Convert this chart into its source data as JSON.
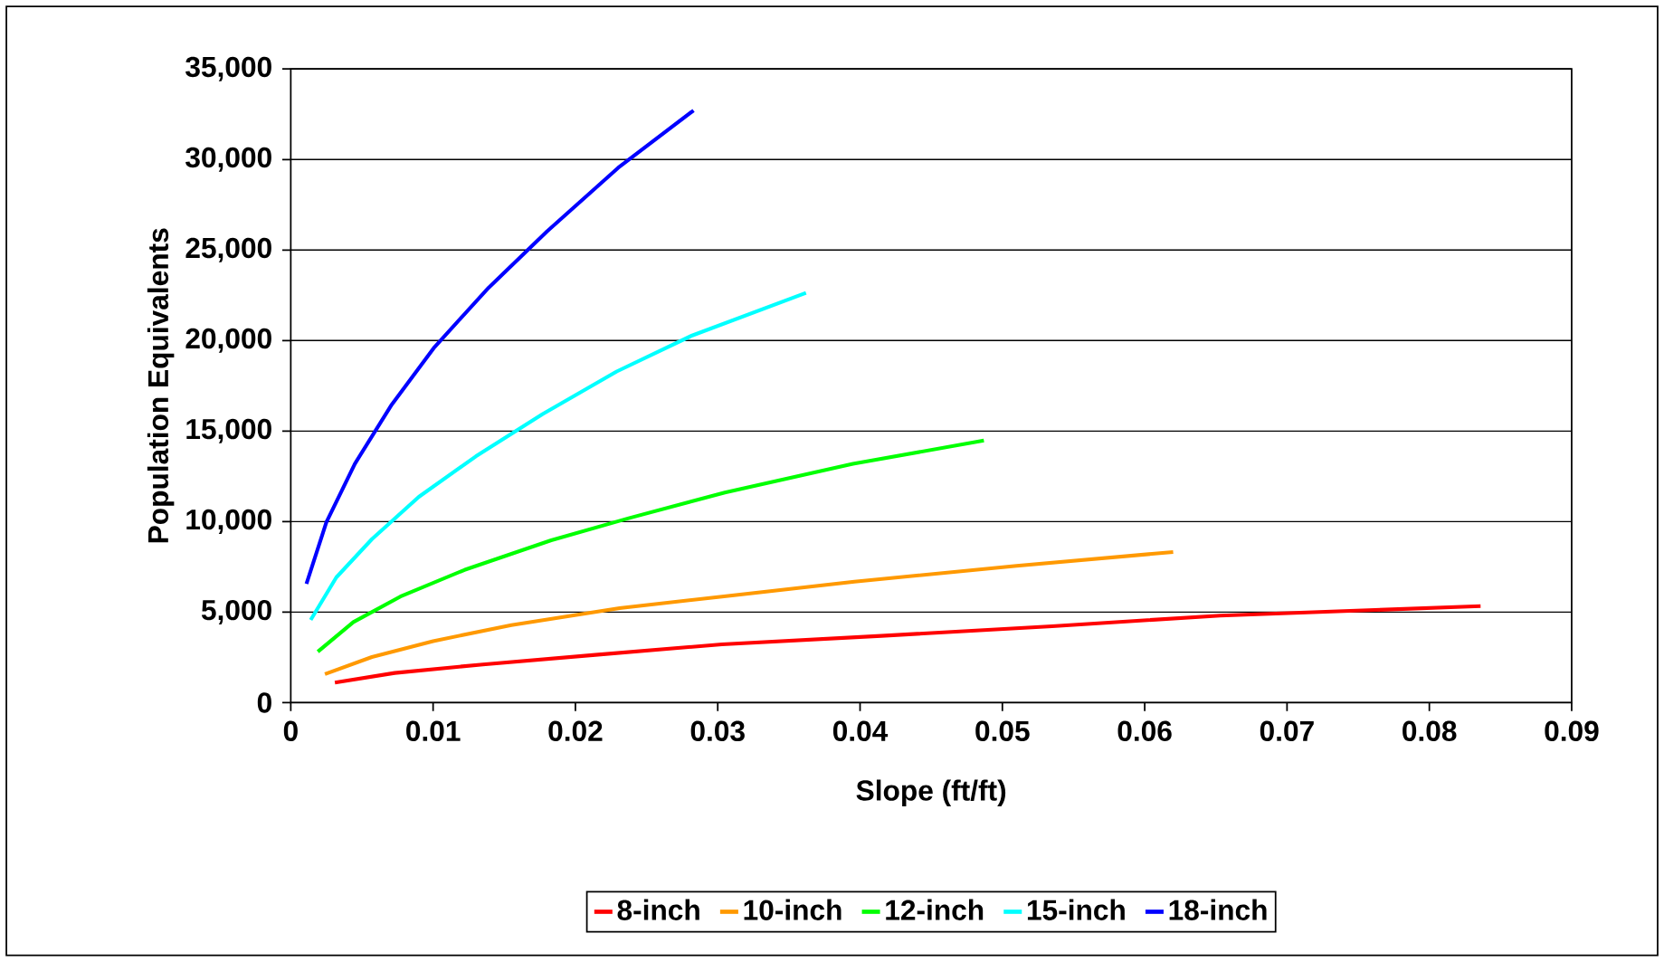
{
  "chart_data": {
    "type": "line",
    "xlabel": "Slope (ft/ft)",
    "ylabel": "Population Equivalents",
    "xlim": [
      0,
      0.09
    ],
    "ylim": [
      0,
      35000
    ],
    "xticks": [
      0,
      0.01,
      0.02,
      0.03,
      0.04,
      0.05,
      0.06,
      0.07,
      0.08,
      0.09
    ],
    "yticks": [
      {
        "value": 0,
        "label": "0"
      },
      {
        "value": 5000,
        "label": "5,000"
      },
      {
        "value": 10000,
        "label": "10,000"
      },
      {
        "value": 15000,
        "label": "15,000"
      },
      {
        "value": 20000,
        "label": "20,000"
      },
      {
        "value": 25000,
        "label": "25,000"
      },
      {
        "value": 30000,
        "label": "30,000"
      },
      {
        "value": 35000,
        "label": "35,000"
      }
    ],
    "grid": "y",
    "legend": "bottom",
    "marker": "none",
    "line_style": "solid",
    "series": [
      {
        "name": "8-inch",
        "color": "#ff0000",
        "x": [
          0.0031,
          0.0073,
          0.0135,
          0.0214,
          0.0303,
          0.0415,
          0.0535,
          0.0653,
          0.0836
        ],
        "values": [
          1110,
          1640,
          2110,
          2640,
          3220,
          3690,
          4220,
          4810,
          5330
        ]
      },
      {
        "name": "10-inch",
        "color": "#ff9900",
        "x": [
          0.0024,
          0.0057,
          0.01,
          0.0155,
          0.0231,
          0.0303,
          0.0396,
          0.051,
          0.062
        ],
        "values": [
          1580,
          2520,
          3400,
          4280,
          5220,
          5860,
          6680,
          7560,
          8320
        ]
      },
      {
        "name": "12-inch",
        "color": "#00ff00",
        "x": [
          0.0019,
          0.0044,
          0.0077,
          0.0122,
          0.0183,
          0.0238,
          0.0305,
          0.0395,
          0.0487
        ],
        "values": [
          2810,
          4450,
          5860,
          7330,
          8970,
          10200,
          11610,
          13190,
          14480
        ]
      },
      {
        "name": "15-inch",
        "color": "#00ffff",
        "x": [
          0.0014,
          0.0032,
          0.0057,
          0.009,
          0.013,
          0.0177,
          0.0229,
          0.0282,
          0.0362
        ],
        "values": [
          4570,
          6920,
          9030,
          11370,
          13600,
          15940,
          18290,
          20280,
          22630
        ]
      },
      {
        "name": "18-inch",
        "color": "#0000ff",
        "x": [
          0.0011,
          0.0025,
          0.0045,
          0.0071,
          0.0101,
          0.0139,
          0.018,
          0.023,
          0.0283
        ],
        "values": [
          6565,
          9965,
          13190,
          16470,
          19640,
          22920,
          26030,
          29540,
          32710
        ]
      }
    ]
  }
}
